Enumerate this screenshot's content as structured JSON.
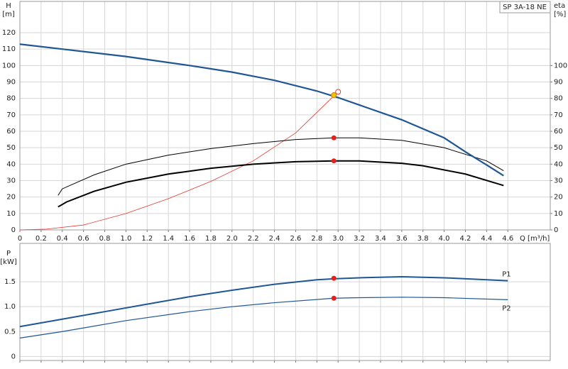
{
  "chart_data": [
    {
      "type": "line",
      "title": "SP 3A-18 NE",
      "y_label": "H",
      "y_unit": "[m]",
      "y2_label": "eta",
      "y2_unit": "[%]",
      "x_label": "Q [m³/h]",
      "xlim": [
        0,
        5.0
      ],
      "xticks": [
        0,
        0.2,
        0.4,
        0.6,
        0.8,
        {
          "value": 1,
          "label": "1.0"
        },
        1.2,
        1.4,
        1.6,
        1.8,
        {
          "value": 2,
          "label": "2.0"
        },
        2.2,
        2.4,
        2.6,
        2.8,
        {
          "value": 3,
          "label": "3.0"
        },
        3.2,
        3.4,
        3.6,
        3.8,
        {
          "value": 4,
          "label": "4.0"
        },
        4.2,
        4.4,
        4.6
      ],
      "ylim": [
        0,
        139
      ],
      "yticks": [
        0,
        10,
        20,
        30,
        40,
        50,
        60,
        70,
        80,
        90,
        100,
        110,
        120
      ],
      "y2lim": [
        0,
        139
      ],
      "y2ticks": [
        0,
        10,
        20,
        30,
        40,
        50,
        60,
        70,
        80,
        90,
        100
      ],
      "grid": true,
      "xtick_labels": true,
      "series": [
        {
          "color": "#e8372c",
          "style": "line",
          "width": 0.8,
          "axis": "y",
          "x": [
            0,
            0.25,
            0.6,
            1.0,
            1.4,
            1.8,
            2.2,
            2.6,
            2.96
          ],
          "values": [
            0,
            0.5,
            3,
            10,
            19,
            29.5,
            42,
            59,
            81.5
          ]
        },
        {
          "color": "#000000",
          "style": "line",
          "width": 1,
          "axis": "y2",
          "x": [
            0.36,
            0.4,
            0.7,
            1.0,
            1.4,
            1.8,
            2.2,
            2.6,
            2.96,
            3.2,
            3.6,
            4.0,
            4.4,
            4.56
          ],
          "values": [
            21,
            25,
            33.5,
            40,
            45.5,
            49.5,
            52.5,
            55,
            56,
            56,
            54.5,
            50,
            42,
            36
          ]
        },
        {
          "color": "#000000",
          "style": "line",
          "width": 2,
          "axis": "y2",
          "x": [
            0.36,
            0.44,
            0.7,
            1.0,
            1.4,
            1.8,
            2.2,
            2.6,
            2.96,
            3.2,
            3.6,
            3.8,
            4.2,
            4.56
          ],
          "values": [
            14,
            17,
            23.5,
            29,
            34,
            37.5,
            40,
            41.5,
            42,
            42,
            40.5,
            39,
            34,
            27
          ]
        },
        {
          "color": "#1f5694",
          "style": "line",
          "width": 2.2,
          "axis": "y",
          "x": [
            0,
            0.4,
            1.0,
            1.6,
            2.0,
            2.4,
            2.8,
            3.0,
            3.2,
            3.6,
            4.0,
            4.2,
            4.4,
            4.56
          ],
          "values": [
            113,
            110,
            105.5,
            100,
            96,
            91,
            84.5,
            80.5,
            76,
            67,
            56,
            47.5,
            39.5,
            33
          ]
        },
        {
          "color": "#e8372c",
          "style": "ring",
          "axis": "y",
          "x": [
            3.0
          ],
          "values": [
            84
          ]
        },
        {
          "color": "#f5c400",
          "style": "dot",
          "axis": "y",
          "x": [
            2.96
          ],
          "values": [
            82
          ]
        },
        {
          "color": "#e8201c",
          "style": "dot",
          "axis": "y2",
          "x": [
            2.96,
            2.96
          ],
          "values": [
            56,
            42
          ]
        }
      ]
    },
    {
      "type": "line",
      "y_label": "P",
      "y_unit": "[kW]",
      "xlim": [
        0,
        5.0
      ],
      "xticks": [
        0,
        0.2,
        0.4,
        0.6,
        0.8,
        1,
        1.2,
        1.4,
        1.6,
        1.8,
        2,
        2.2,
        2.4,
        2.6,
        2.8,
        3,
        3.2,
        3.4,
        3.6,
        3.8,
        4,
        4.2,
        4.4,
        4.6
      ],
      "ylim": [
        -0.08,
        2.27
      ],
      "yticks": [
        0,
        0.5,
        {
          "value": 1,
          "label": "1.0"
        },
        1.5
      ],
      "grid": true,
      "xtick_labels": false,
      "series": [
        {
          "name": "P1",
          "color": "#1f5694",
          "style": "line",
          "width": 2,
          "axis": "y",
          "x": [
            0,
            0.4,
            0.8,
            1.2,
            1.6,
            2.0,
            2.4,
            2.8,
            2.96,
            3.2,
            3.6,
            4.0,
            4.6
          ],
          "values": [
            0.6,
            0.75,
            0.9,
            1.05,
            1.2,
            1.33,
            1.45,
            1.54,
            1.56,
            1.58,
            1.6,
            1.58,
            1.52
          ]
        },
        {
          "name": "P2",
          "color": "#1f5694",
          "style": "line",
          "width": 1.2,
          "axis": "y",
          "x": [
            0,
            0.4,
            1.0,
            1.6,
            2.0,
            2.4,
            2.96,
            3.2,
            3.6,
            4.0,
            4.6
          ],
          "values": [
            0.37,
            0.5,
            0.72,
            0.9,
            1.0,
            1.08,
            1.17,
            1.18,
            1.19,
            1.18,
            1.14
          ]
        },
        {
          "color": "#e8201c",
          "style": "dot",
          "axis": "y",
          "x": [
            2.96,
            2.96
          ],
          "values": [
            1.57,
            1.17
          ]
        }
      ]
    }
  ]
}
